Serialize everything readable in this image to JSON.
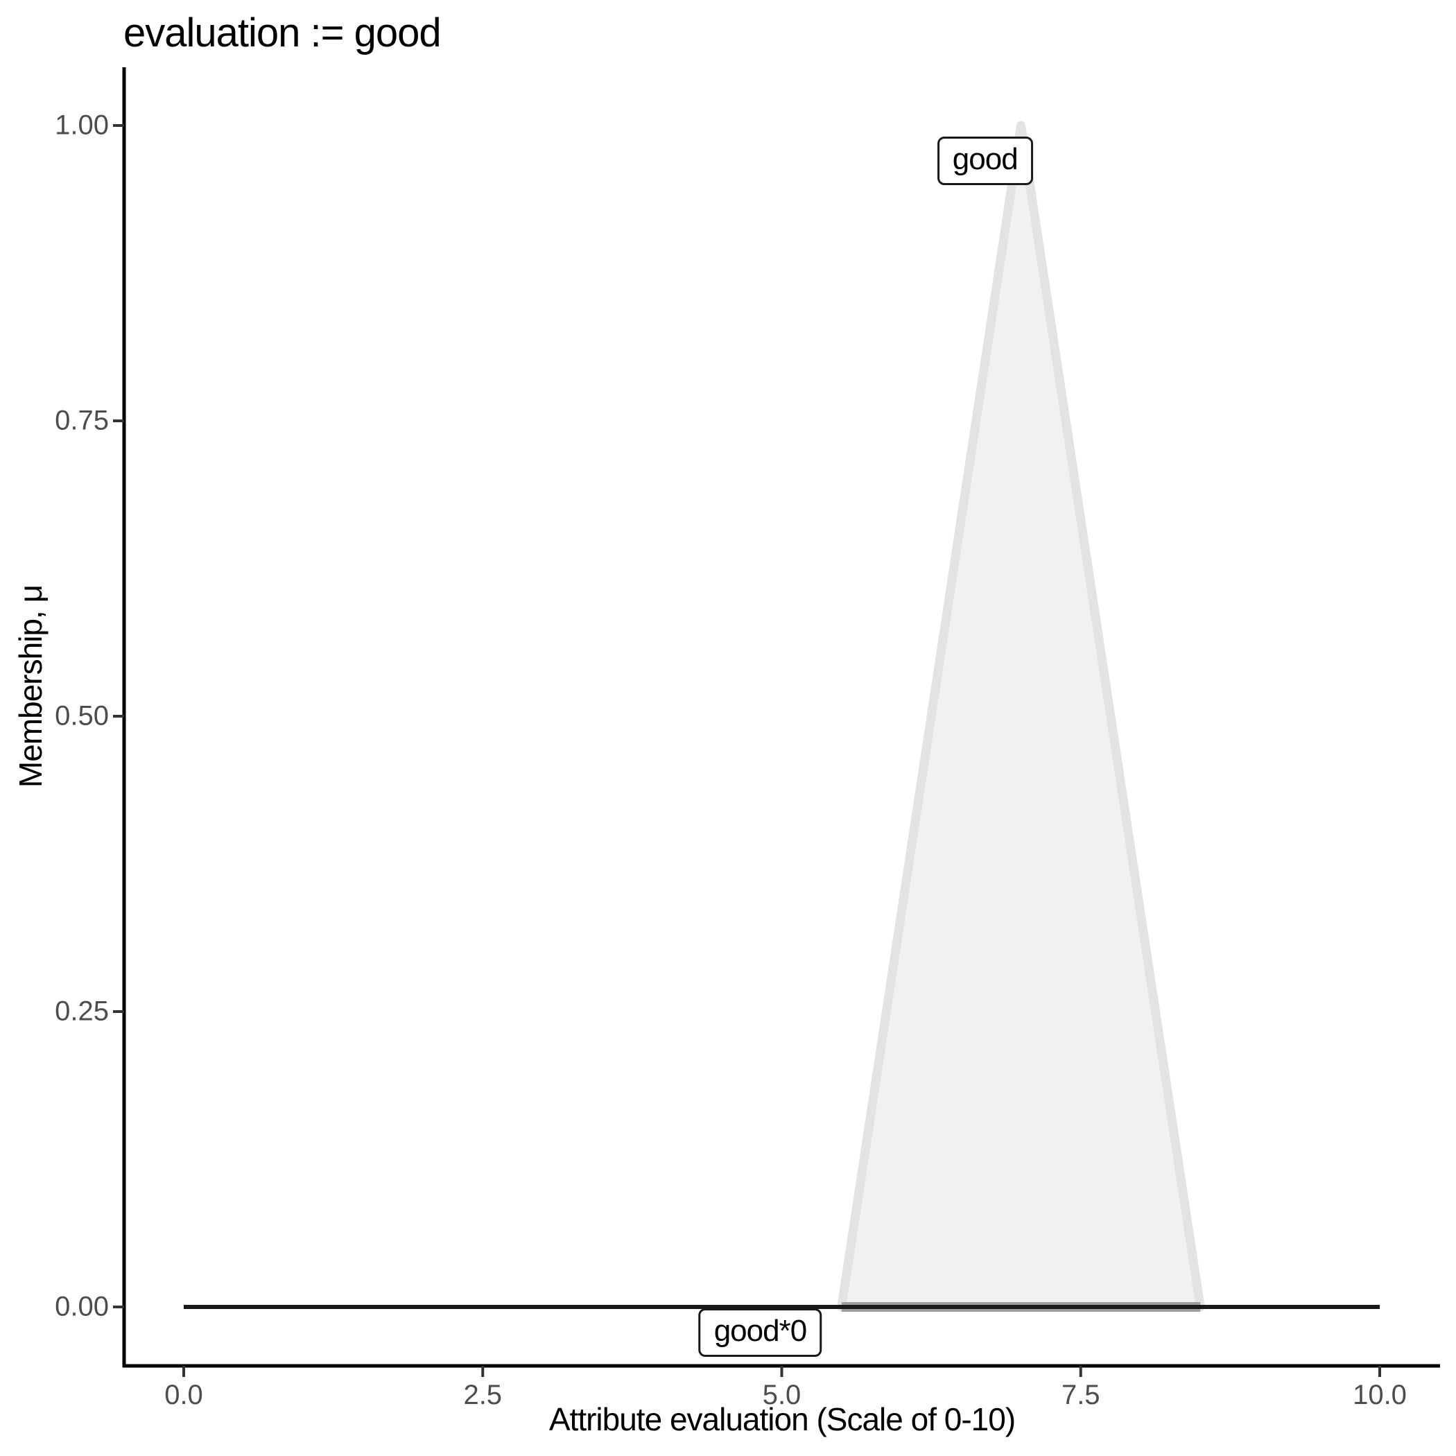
{
  "chart_data": {
    "type": "area",
    "title": "evaluation := good",
    "xlabel": "Attribute evaluation (Scale of 0-10)",
    "ylabel": "Membership, μ",
    "xlim": [
      0,
      10
    ],
    "ylim": [
      0,
      1
    ],
    "grid": false,
    "legend": "none",
    "x_tick_values": [
      0,
      2.5,
      5,
      7.5,
      10
    ],
    "x_tick_labels": [
      "0.0",
      "2.5",
      "5.0",
      "7.5",
      "10.0"
    ],
    "y_tick_values": [
      0,
      0.25,
      0.5,
      0.75,
      1
    ],
    "y_tick_labels": [
      "0.00",
      "0.25",
      "0.50",
      "0.75",
      "1.00"
    ],
    "series": [
      {
        "name": "good",
        "kind": "area",
        "description": "triangular membership function",
        "points": [
          [
            5.5,
            0
          ],
          [
            7,
            1
          ],
          [
            8.5,
            0
          ]
        ],
        "fill": "#f1f1f1",
        "stroke": "#e3e3e3",
        "stroke_width": 13,
        "base_stroke": "#9e9e9e",
        "base_stroke_width": 14
      },
      {
        "name": "good*0",
        "kind": "line",
        "description": "good scaled by 0 (flat at membership 0)",
        "points": [
          [
            0,
            0
          ],
          [
            10,
            0
          ]
        ],
        "stroke": "#1a1a1a",
        "stroke_width": 6
      }
    ],
    "annotations": [
      {
        "text": "good",
        "x": 6.7,
        "y": 0.97
      },
      {
        "text": "good*0",
        "x": 4.82,
        "y": -0.022
      }
    ]
  },
  "style": {
    "axis_color": "#000000",
    "tick_color": "#333333",
    "tick_label_color": "#4d4d4d",
    "background": "#ffffff"
  }
}
